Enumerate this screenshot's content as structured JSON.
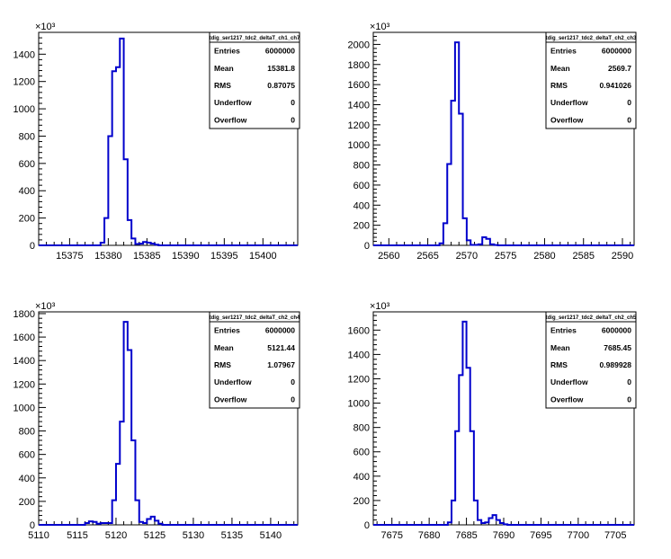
{
  "chart_data": [
    {
      "type": "histogram",
      "title": "tdig_ser1217_tdc2_deltaT_ch1_ch7",
      "xlim": [
        15371,
        15404.5
      ],
      "ylim": [
        0,
        1560
      ],
      "y_multiplier_label": "×10³",
      "xticks": [
        15375,
        15380,
        15385,
        15390,
        15395,
        15400
      ],
      "yticks": [
        0,
        200,
        400,
        600,
        800,
        1000,
        1200,
        1400
      ],
      "bin_edges": [
        15371,
        15379,
        15379.5,
        15380,
        15380.5,
        15381,
        15381.5,
        15382,
        15382.5,
        15383,
        15383.5,
        15384,
        15384.5,
        15385,
        15385.5,
        15386,
        15386.5,
        15404.5
      ],
      "values": [
        0,
        20,
        200,
        800,
        1275,
        1305,
        1515,
        630,
        185,
        50,
        10,
        12,
        25,
        20,
        12,
        5,
        0
      ],
      "stats": [
        {
          "label": "Entries",
          "value": "6000000"
        },
        {
          "label": "Mean",
          "value": "15381.8"
        },
        {
          "label": "RMS",
          "value": "0.87075"
        },
        {
          "label": "Underflow",
          "value": "0"
        },
        {
          "label": "Overflow",
          "value": "0"
        }
      ]
    },
    {
      "type": "histogram",
      "title": "tdig_ser1217_tdc2_deltaT_ch2_ch3",
      "xlim": [
        2558,
        2591.5
      ],
      "ylim": [
        0,
        2120
      ],
      "y_multiplier_label": "×10³",
      "xticks": [
        2560,
        2565,
        2570,
        2575,
        2580,
        2585,
        2590
      ],
      "yticks": [
        0,
        200,
        400,
        600,
        800,
        1000,
        1200,
        1400,
        1600,
        1800,
        2000
      ],
      "bin_edges": [
        2558,
        2566.5,
        2567,
        2567.5,
        2568,
        2568.5,
        2569,
        2569.5,
        2570,
        2570.5,
        2571,
        2571.5,
        2572,
        2572.5,
        2573,
        2573.5,
        2574,
        2574.5,
        2591.5
      ],
      "values": [
        0,
        20,
        220,
        810,
        1440,
        2020,
        1310,
        270,
        50,
        5,
        5,
        10,
        80,
        65,
        10,
        3,
        0,
        0
      ],
      "stats": [
        {
          "label": "Entries",
          "value": "6000000"
        },
        {
          "label": "Mean",
          "value": "2569.7"
        },
        {
          "label": "RMS",
          "value": "0.941026"
        },
        {
          "label": "Underflow",
          "value": "0"
        },
        {
          "label": "Overflow",
          "value": "0"
        }
      ]
    },
    {
      "type": "histogram",
      "title": "tdig_ser1217_tdc2_deltaT_ch2_ch4",
      "xlim": [
        5110,
        5143.5
      ],
      "ylim": [
        0,
        1815
      ],
      "y_multiplier_label": "×10³",
      "xticks": [
        5110,
        5115,
        5120,
        5125,
        5130,
        5135,
        5140
      ],
      "yticks": [
        0,
        200,
        400,
        600,
        800,
        1000,
        1200,
        1400,
        1600,
        1800
      ],
      "bin_edges": [
        5110,
        5116,
        5116.5,
        5117,
        5117.5,
        5118,
        5119.5,
        5120,
        5120.5,
        5121,
        5121.5,
        5122,
        5122.5,
        5123,
        5123.5,
        5124,
        5124.5,
        5125,
        5125.5,
        5126,
        5143.5
      ],
      "values": [
        0,
        15,
        30,
        25,
        10,
        15,
        210,
        520,
        880,
        1730,
        1490,
        720,
        210,
        25,
        15,
        50,
        70,
        35,
        10,
        0
      ],
      "stats": [
        {
          "label": "Entries",
          "value": "6000000"
        },
        {
          "label": "Mean",
          "value": "5121.44"
        },
        {
          "label": "RMS",
          "value": "1.07967"
        },
        {
          "label": "Underflow",
          "value": "0"
        },
        {
          "label": "Overflow",
          "value": "0"
        }
      ]
    },
    {
      "type": "histogram",
      "title": "tdig_ser1217_tdc2_deltaT_ch2_ch5",
      "xlim": [
        7672.5,
        7707.5
      ],
      "ylim": [
        0,
        1750
      ],
      "y_multiplier_label": "×10³",
      "xticks": [
        7675,
        7680,
        7685,
        7690,
        7695,
        7700,
        7705
      ],
      "yticks": [
        0,
        200,
        400,
        600,
        800,
        1000,
        1200,
        1400,
        1600
      ],
      "bin_edges": [
        7672.5,
        7682.5,
        7683,
        7683.5,
        7684,
        7684.5,
        7685,
        7685.5,
        7686,
        7686.5,
        7687,
        7687.5,
        7688,
        7688.5,
        7689,
        7689.5,
        7690,
        7690.5,
        7707.5
      ],
      "values": [
        0,
        20,
        200,
        770,
        1230,
        1670,
        1290,
        770,
        200,
        40,
        15,
        20,
        55,
        80,
        40,
        15,
        5,
        0
      ],
      "stats": [
        {
          "label": "Entries",
          "value": "6000000"
        },
        {
          "label": "Mean",
          "value": "7685.45"
        },
        {
          "label": "RMS",
          "value": "0.989928"
        },
        {
          "label": "Underflow",
          "value": "0"
        },
        {
          "label": "Overflow",
          "value": "0"
        }
      ]
    }
  ],
  "colors": {
    "line": "#0000cc",
    "axis": "#000000",
    "background": "#ffffff"
  }
}
